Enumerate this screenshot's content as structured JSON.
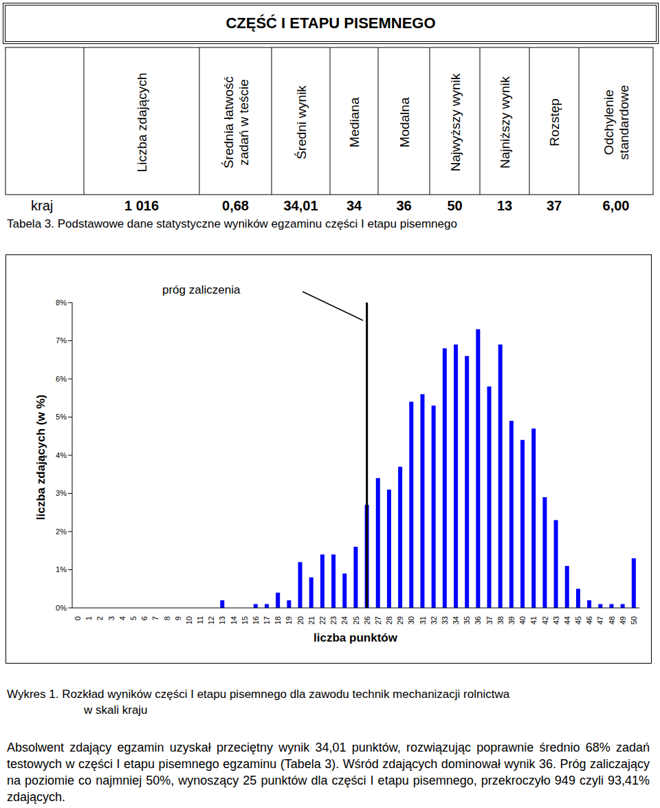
{
  "header": {
    "title": "CZĘŚĆ I ETAPU PISEMNEGO"
  },
  "table": {
    "columns": [
      [
        "Liczba zdających"
      ],
      [
        "Średnia łatwość",
        "zadań w teście"
      ],
      [
        "Średni wynik"
      ],
      [
        "Mediana"
      ],
      [
        "Modalna"
      ],
      [
        "Najwyższy wynik"
      ],
      [
        "Najniższy wynik"
      ],
      [
        "Rozstęp"
      ],
      [
        "Odchylenie",
        "standardowe"
      ]
    ],
    "rows": [
      [
        "kraj",
        "1 016",
        "0,68",
        "34,01",
        "34",
        "36",
        "50",
        "13",
        "37",
        "6,00"
      ]
    ],
    "caption": "Tabela 3. Podstawowe dane statystyczne wyników egzaminu części I etapu pisemnego"
  },
  "chart_data": {
    "type": "bar",
    "categories": [
      "0",
      "1",
      "2",
      "3",
      "4",
      "5",
      "6",
      "7",
      "8",
      "9",
      "10",
      "11",
      "12",
      "13",
      "14",
      "15",
      "16",
      "17",
      "18",
      "19",
      "20",
      "21",
      "22",
      "23",
      "24",
      "25",
      "26",
      "27",
      "28",
      "29",
      "30",
      "31",
      "32",
      "33",
      "34",
      "35",
      "36",
      "37",
      "38",
      "39",
      "40",
      "41",
      "42",
      "43",
      "44",
      "45",
      "46",
      "47",
      "48",
      "49",
      "50"
    ],
    "values": [
      0,
      0,
      0,
      0,
      0,
      0,
      0,
      0,
      0,
      0,
      0,
      0,
      0,
      0.2,
      0,
      0,
      0.1,
      0.1,
      0.4,
      0.2,
      1.2,
      0.8,
      1.4,
      1.4,
      0.9,
      1.6,
      2.7,
      3.4,
      3.1,
      3.7,
      5.4,
      5.6,
      5.3,
      6.8,
      6.9,
      6.6,
      7.3,
      5.8,
      6.9,
      4.9,
      4.4,
      4.7,
      2.9,
      2.3,
      1.1,
      0.5,
      0.2,
      0.1,
      0.1,
      0.1,
      1.3
    ],
    "color": "#0000ff",
    "ylim": [
      0,
      8
    ],
    "yticks": [
      {
        "value": 0,
        "label": "0%"
      },
      {
        "value": 1,
        "label": "1%"
      },
      {
        "value": 2,
        "label": "2%"
      },
      {
        "value": 3,
        "label": "3%"
      },
      {
        "value": 4,
        "label": "4%"
      },
      {
        "value": 5,
        "label": "5%"
      },
      {
        "value": 6,
        "label": "6%"
      },
      {
        "value": 7,
        "label": "7%"
      },
      {
        "value": 8,
        "label": "8%"
      }
    ],
    "y_label": "liczba zdających (w %)",
    "x_label": "liczba punktów",
    "grid": false,
    "annotations": [
      {
        "text": "próg zaliczenia",
        "x": "26"
      }
    ]
  },
  "chart_caption": [
    "Wykres 1. Rozkład wyników części I etapu pisemnego dla zawodu technik mechanizacji rolnictwa",
    "w skali kraju"
  ],
  "paragraph": "Absolwent zdający egzamin uzyskał przeciętny wynik 34,01 punktów, rozwiązując poprawnie średnio 68% zadań testowych w części I etapu pisemnego egzaminu (Tabela 3). Wśród zdających dominował wynik 36. Próg zaliczający na poziomie co najmniej 50%, wynoszący 25 punktów dla części I etapu pisemnego, przekroczyło 949 czyli 93,41% zdających."
}
